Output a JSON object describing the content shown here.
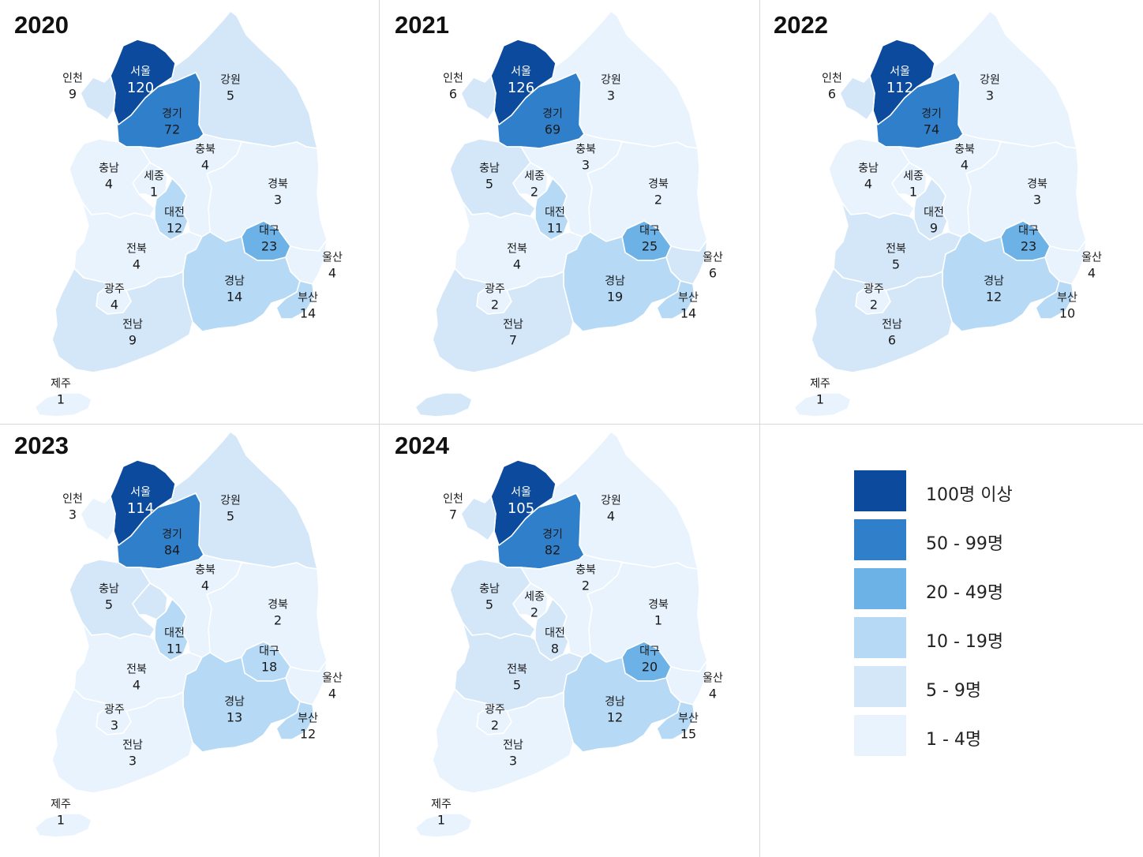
{
  "colors": {
    "c100": "#0b4a9c",
    "c50": "#2f7fca",
    "c20": "#6cb2e6",
    "c10": "#b6d9f5",
    "c5": "#d4e7f9",
    "c1": "#e8f3fd",
    "border": "#ffffff"
  },
  "legend": [
    {
      "label": "100명 이상",
      "color": "#0b4a9c"
    },
    {
      "label": "50 - 99명",
      "color": "#2f7fca"
    },
    {
      "label": "20 - 49명",
      "color": "#6cb2e6"
    },
    {
      "label": "10 - 19명",
      "color": "#b6d9f5"
    },
    {
      "label": "5 - 9명",
      "color": "#d4e7f9"
    },
    {
      "label": "1 - 4명",
      "color": "#e8f3fd"
    }
  ],
  "region_names": {
    "seoul": "서울",
    "gyeonggi": "경기",
    "incheon": "인천",
    "gangwon": "강원",
    "chungbuk": "충북",
    "chungnam": "충남",
    "sejong": "세종",
    "daejeon": "대전",
    "gyeongbuk": "경북",
    "daegu": "대구",
    "ulsan": "울산",
    "jeonbuk": "전북",
    "gwangju": "광주",
    "gyeongnam": "경남",
    "busan": "부산",
    "jeonnam": "전남",
    "jeju": "제주"
  },
  "years": [
    {
      "year": "2020",
      "values": {
        "seoul": 120,
        "gyeonggi": 72,
        "incheon": 9,
        "gangwon": 5,
        "chungbuk": 4,
        "chungnam": 4,
        "sejong": 1,
        "daejeon": 12,
        "gyeongbuk": 3,
        "daegu": 23,
        "ulsan": 4,
        "jeonbuk": 4,
        "gwangju": 4,
        "gyeongnam": 14,
        "busan": 14,
        "jeonnam": 9,
        "jeju": 1
      }
    },
    {
      "year": "2021",
      "values": {
        "seoul": 126,
        "gyeonggi": 69,
        "incheon": 6,
        "gangwon": 3,
        "chungbuk": 3,
        "chungnam": 5,
        "sejong": 2,
        "daejeon": 11,
        "gyeongbuk": 2,
        "daegu": 25,
        "ulsan": 6,
        "jeonbuk": 4,
        "gwangju": 2,
        "gyeongnam": 19,
        "busan": 14,
        "jeonnam": 7
      }
    },
    {
      "year": "2022",
      "values": {
        "seoul": 112,
        "gyeonggi": 74,
        "incheon": 6,
        "gangwon": 3,
        "chungbuk": 4,
        "chungnam": 4,
        "sejong": 1,
        "daejeon": 9,
        "gyeongbuk": 3,
        "daegu": 23,
        "ulsan": 4,
        "jeonbuk": 5,
        "gwangju": 2,
        "gyeongnam": 12,
        "busan": 10,
        "jeonnam": 6,
        "jeju": 1
      }
    },
    {
      "year": "2023",
      "values": {
        "seoul": 114,
        "gyeonggi": 84,
        "incheon": 3,
        "gangwon": 5,
        "chungbuk": 4,
        "chungnam": 5,
        "daejeon": 11,
        "gyeongbuk": 2,
        "daegu": 18,
        "ulsan": 4,
        "jeonbuk": 4,
        "gwangju": 3,
        "gyeongnam": 13,
        "busan": 12,
        "jeonnam": 3,
        "jeju": 1
      }
    },
    {
      "year": "2024",
      "values": {
        "seoul": 105,
        "gyeonggi": 82,
        "incheon": 7,
        "gangwon": 4,
        "chungbuk": 2,
        "chungnam": 5,
        "sejong": 2,
        "daejeon": 8,
        "gyeongbuk": 1,
        "daegu": 20,
        "ulsan": 4,
        "jeonbuk": 5,
        "gwangju": 2,
        "gyeongnam": 12,
        "busan": 15,
        "jeonnam": 3,
        "jeju": 1
      }
    }
  ]
}
